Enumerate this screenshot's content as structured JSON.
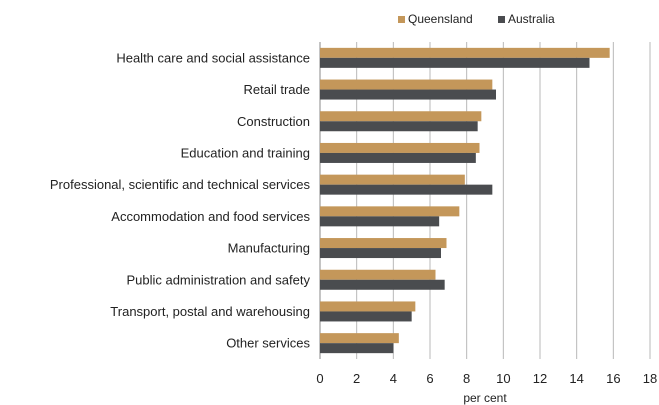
{
  "chart_data": {
    "type": "bar",
    "orientation": "horizontal",
    "categories": [
      "Health care and social assistance",
      "Retail trade",
      "Construction",
      "Education and training",
      "Professional, scientific and technical services",
      "Accommodation and food services",
      "Manufacturing",
      "Public administration and safety",
      "Transport, postal and warehousing",
      "Other services"
    ],
    "series": [
      {
        "name": "Queensland",
        "color": "#C4975A",
        "values": [
          15.8,
          9.4,
          8.8,
          8.7,
          7.9,
          7.6,
          6.9,
          6.3,
          5.2,
          4.3
        ]
      },
      {
        "name": "Australia",
        "color": "#4A4C4F",
        "values": [
          14.7,
          9.6,
          8.6,
          8.5,
          9.4,
          6.5,
          6.6,
          6.8,
          5.0,
          4.0
        ]
      }
    ],
    "xlabel": "per cent",
    "xlim": [
      0,
      18
    ],
    "xticks": [
      0,
      2,
      4,
      6,
      8,
      10,
      12,
      14,
      16,
      18
    ],
    "grid": "vertical",
    "legend_position": "top"
  }
}
